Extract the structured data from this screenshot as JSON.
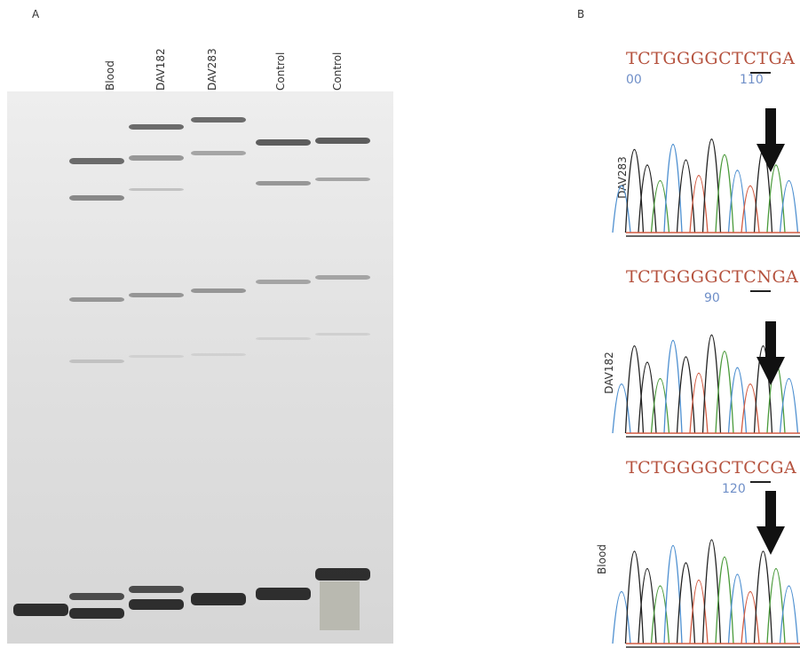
{
  "panel_a": {
    "label": "A",
    "lanes": [
      "Blood",
      "DAV182",
      "DAV283",
      "Control",
      "Control"
    ]
  },
  "panel_b": {
    "label": "B",
    "traces": [
      {
        "name": "DAV283",
        "sequence": "TCTGGGGCTCTGA",
        "positions": [
          "00",
          "110"
        ]
      },
      {
        "name": "DAV182",
        "sequence": "TCTGGGGCTCNGA",
        "positions": [
          "90"
        ]
      },
      {
        "name": "Blood",
        "sequence": "TCTGGGGCTCCGA",
        "positions": [
          "120"
        ]
      }
    ]
  }
}
